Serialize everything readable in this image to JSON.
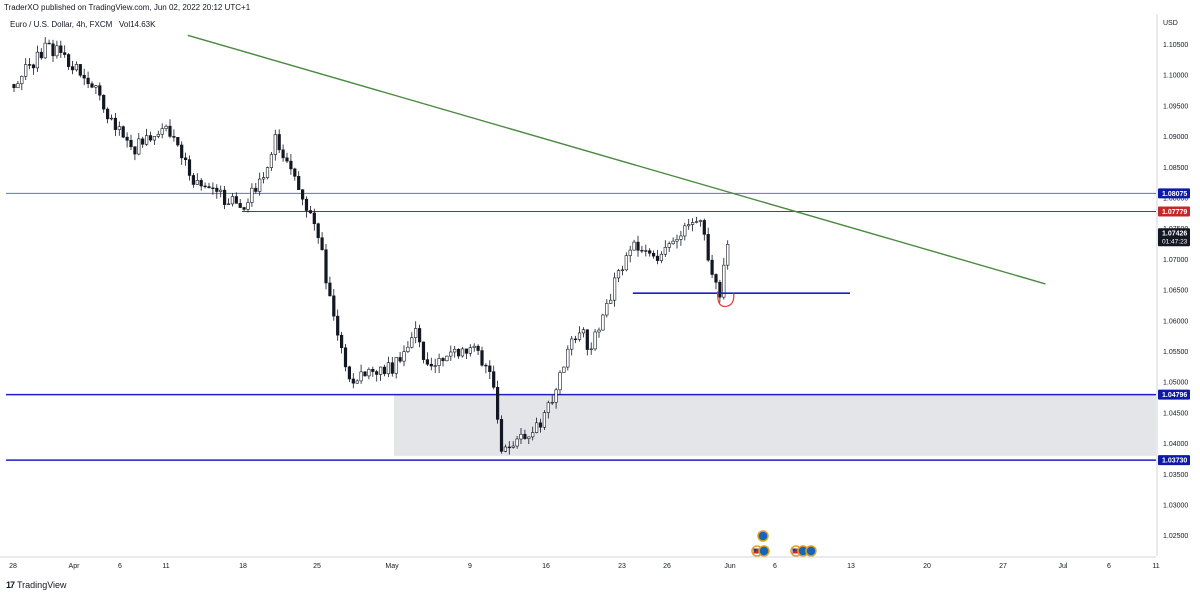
{
  "header": {
    "published_text": "TraderXO published on TradingView.com, Jun 02, 2022 20:12 UTC+1",
    "symbol_text": "Euro / U.S. Dollar, 4h, FXCM",
    "volume_text": "Vol14.63K"
  },
  "brand": {
    "icon": "tradingview-logo-icon",
    "label": "TradingView"
  },
  "colors": {
    "candle": "#131722",
    "trendline": "#4a8a3f",
    "resistance_blue": "#5b6cf0",
    "support_navy": "#1c1fc6",
    "red_line": "#b71c1c",
    "zone_fill": "#e4e5e8",
    "axis_text": "#131722",
    "badge_dark": "#131722",
    "badge_red": "#c62828",
    "badge_navy": "#0d1aa8"
  },
  "chart_data": {
    "type": "line",
    "title": "",
    "xlabel": "",
    "ylabel": "",
    "y_unit": "USD",
    "ylim": [
      1.0225,
      1.1085
    ],
    "x_ticks": [
      "28",
      "Apr",
      "6",
      "11",
      "18",
      "25",
      "May",
      "9",
      "16",
      "23",
      "26",
      "Jun",
      "6",
      "13",
      "20",
      "27",
      "Jul",
      "6",
      "11"
    ],
    "y_ticks": [
      "1.10500",
      "1.10000",
      "1.09500",
      "1.09000",
      "1.08500",
      "1.08000",
      "1.07500",
      "1.07000",
      "1.06500",
      "1.06000",
      "1.05500",
      "1.05000",
      "1.04500",
      "1.04000",
      "1.03500",
      "1.03000",
      "1.02500"
    ],
    "series": [
      {
        "x": [
          "Mar 28",
          "Mar 31",
          "Apr 1",
          "Apr 4",
          "Apr 6",
          "Apr 8",
          "Apr 11",
          "Apr 13",
          "Apr 14",
          "Apr 18",
          "Apr 20",
          "Apr 21",
          "Apr 22",
          "Apr 25",
          "Apr 26",
          "Apr 27",
          "Apr 28",
          "May 2",
          "May 4",
          "May 5",
          "May 9",
          "May 11",
          "May 12",
          "May 13",
          "May 16",
          "May 18",
          "May 19",
          "May 20",
          "May 23",
          "May 24",
          "May 26",
          "May 30",
          "May 31",
          "Jun 1",
          "Jun 2"
        ],
        "values": [
          1.0985,
          1.1045,
          1.104,
          1.099,
          1.0925,
          1.088,
          1.0915,
          1.0845,
          1.082,
          1.0785,
          1.083,
          1.09,
          1.086,
          1.0745,
          1.064,
          1.056,
          1.0505,
          1.0525,
          1.059,
          1.0525,
          1.056,
          1.0515,
          1.038,
          1.0395,
          1.0445,
          1.0545,
          1.059,
          1.0555,
          1.069,
          1.072,
          1.07,
          1.0775,
          1.07,
          1.0645,
          1.0742
        ]
      }
    ],
    "levels": [
      {
        "price": 1.08075,
        "label": "1.08075"
      },
      {
        "price": 1.07779,
        "label": "1.07779"
      },
      {
        "price": 1.04796,
        "label": "1.04796"
      },
      {
        "price": 1.0373,
        "label": "1.03730"
      }
    ],
    "current_price": {
      "label": "1.07426",
      "countdown": "01:47:23"
    },
    "horizontal_segment": {
      "price": 1.0645,
      "from": "May 24",
      "to": "Jun 13"
    },
    "trendline": {
      "from": {
        "x": "Apr 13",
        "price": 1.1065
      },
      "to": {
        "x": "Jul 1",
        "price": 1.066
      }
    },
    "zone": {
      "from": "May 2",
      "to": "Jul 11",
      "price_top": 1.04796,
      "price_bottom": 1.038
    },
    "grid": false,
    "legend": "none"
  }
}
